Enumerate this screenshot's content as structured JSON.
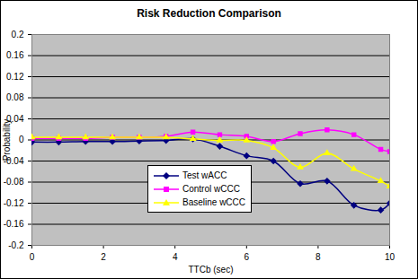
{
  "chart_data": {
    "type": "line",
    "title": "Risk Reduction Comparison",
    "x_label": "TTCb (sec)",
    "y_label": "Probability",
    "x": [
      0,
      0.75,
      1.5,
      2.25,
      3,
      3.75,
      4.5,
      5.25,
      6,
      6.75,
      7.5,
      8.25,
      9,
      9.75,
      10
    ],
    "series": [
      {
        "name": "Test wACC",
        "color": "#000080",
        "marker": "diamond",
        "line_style": "smooth",
        "values": [
          -0.004,
          -0.004,
          -0.003,
          -0.003,
          -0.002,
          -0.001,
          0.002,
          -0.012,
          -0.03,
          -0.04,
          -0.083,
          -0.078,
          -0.124,
          -0.133,
          -0.12
        ]
      },
      {
        "name": "Control wCCC",
        "color": "#ff00ff",
        "marker": "square",
        "line_style": "smooth",
        "values": [
          0.003,
          0.003,
          0.003,
          0.005,
          0.005,
          0.007,
          0.015,
          0.01,
          0.007,
          -0.003,
          0.012,
          0.019,
          0.01,
          -0.018,
          -0.022
        ]
      },
      {
        "name": "Baseline wCCC",
        "color": "#ffff00",
        "marker": "triangle",
        "line_style": "smooth",
        "values": [
          0.005,
          0.005,
          0.005,
          0.005,
          0.005,
          0.005,
          0.002,
          -0.001,
          -0.001,
          -0.015,
          -0.052,
          -0.025,
          -0.055,
          -0.078,
          -0.088
        ]
      }
    ],
    "xlim": [
      0,
      10
    ],
    "xticks": [
      0,
      2,
      4,
      6,
      8,
      10
    ],
    "ylim": [
      -0.2,
      0.2
    ],
    "yticks": [
      -0.2,
      -0.16,
      -0.12,
      -0.08,
      -0.04,
      0,
      0.04,
      0.08,
      0.12,
      0.16,
      0.2
    ],
    "grid": true,
    "legend": "center"
  }
}
